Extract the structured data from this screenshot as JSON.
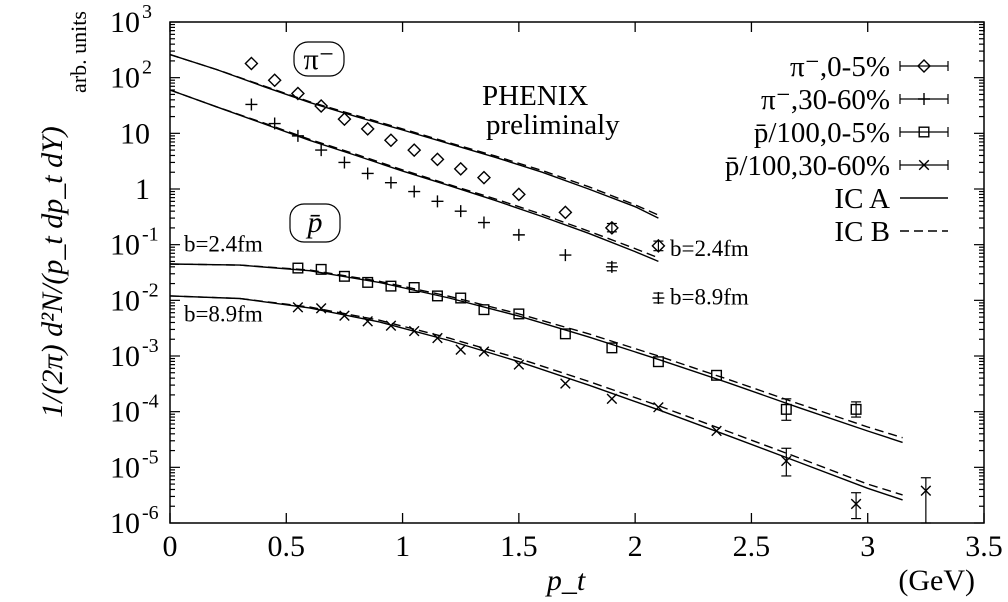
{
  "chart_data": {
    "type": "scatter",
    "title": "",
    "xlabel": "p_t",
    "xunit": "(GeV)",
    "ylabel": "1/(2π) d²N/(p_t dp_t dY)",
    "yunit": "arb. units",
    "xlim": [
      0,
      3.5
    ],
    "ylim": [
      1e-06,
      1000
    ],
    "yscale": "log",
    "grid": false,
    "legend_position": "top-right",
    "x_ticks": [
      "0",
      "0.5",
      "1",
      "1.5",
      "2",
      "2.5",
      "3",
      "3.5"
    ],
    "y_ticks": [
      {
        "value": 1e-06,
        "base": "10",
        "exp": "-6"
      },
      {
        "value": 1e-05,
        "base": "10",
        "exp": "-5"
      },
      {
        "value": 0.0001,
        "base": "10",
        "exp": "-4"
      },
      {
        "value": 0.001,
        "base": "10",
        "exp": "-3"
      },
      {
        "value": 0.01,
        "base": "10",
        "exp": "-2"
      },
      {
        "value": 0.1,
        "base": "10",
        "exp": "-1"
      },
      {
        "value": 1,
        "base": "1",
        "exp": ""
      },
      {
        "value": 10,
        "base": "10",
        "exp": ""
      },
      {
        "value": 100,
        "base": "10",
        "exp": "2"
      },
      {
        "value": 1000,
        "base": "10",
        "exp": "3"
      }
    ],
    "annotations": {
      "experiment": [
        "PHENIX",
        "preliminaly"
      ],
      "pion_box": "π⁻",
      "proton_box": "p̄",
      "b_labels": [
        {
          "text": "b=2.4fm",
          "x": 2.15,
          "y": 0.062
        },
        {
          "text": "b=8.9fm",
          "x": 2.15,
          "y": 0.0085
        },
        {
          "text": "b=2.4fm",
          "x": 0.06,
          "y": 0.075
        },
        {
          "text": "b=8.9fm",
          "x": 0.06,
          "y": 0.0042
        }
      ]
    },
    "series": [
      {
        "name": "π⁻,0-5%",
        "marker": "diamond",
        "points": [
          {
            "x": 0.35,
            "y": 180
          },
          {
            "x": 0.45,
            "y": 90
          },
          {
            "x": 0.55,
            "y": 52
          },
          {
            "x": 0.65,
            "y": 31
          },
          {
            "x": 0.75,
            "y": 18
          },
          {
            "x": 0.85,
            "y": 12
          },
          {
            "x": 0.95,
            "y": 7.5
          },
          {
            "x": 1.05,
            "y": 5.0
          },
          {
            "x": 1.15,
            "y": 3.4
          },
          {
            "x": 1.25,
            "y": 2.3
          },
          {
            "x": 1.35,
            "y": 1.6
          },
          {
            "x": 1.5,
            "y": 0.8
          },
          {
            "x": 1.7,
            "y": 0.38
          },
          {
            "x": 1.9,
            "y": 0.2,
            "err": [
              0.17,
              0.24
            ]
          },
          {
            "x": 2.1,
            "y": 0.095,
            "err": [
              0.078,
              0.116
            ]
          }
        ]
      },
      {
        "name": "π⁻,30-60%",
        "marker": "plus",
        "points": [
          {
            "x": 0.35,
            "y": 33
          },
          {
            "x": 0.45,
            "y": 15
          },
          {
            "x": 0.55,
            "y": 9.0
          },
          {
            "x": 0.65,
            "y": 5.0
          },
          {
            "x": 0.75,
            "y": 3.0
          },
          {
            "x": 0.85,
            "y": 1.9
          },
          {
            "x": 0.95,
            "y": 1.3
          },
          {
            "x": 1.05,
            "y": 0.9
          },
          {
            "x": 1.15,
            "y": 0.6
          },
          {
            "x": 1.25,
            "y": 0.4
          },
          {
            "x": 1.35,
            "y": 0.25
          },
          {
            "x": 1.5,
            "y": 0.15
          },
          {
            "x": 1.7,
            "y": 0.065
          },
          {
            "x": 1.9,
            "y": 0.04,
            "err": [
              0.034,
              0.047
            ]
          },
          {
            "x": 2.1,
            "y": 0.011,
            "err": [
              0.009,
              0.0135
            ]
          }
        ]
      },
      {
        "name": "p̄/100,0-5%",
        "marker": "square",
        "points": [
          {
            "x": 0.55,
            "y": 0.038
          },
          {
            "x": 0.65,
            "y": 0.036
          },
          {
            "x": 0.75,
            "y": 0.027
          },
          {
            "x": 0.85,
            "y": 0.021
          },
          {
            "x": 0.95,
            "y": 0.018
          },
          {
            "x": 1.05,
            "y": 0.017
          },
          {
            "x": 1.15,
            "y": 0.012
          },
          {
            "x": 1.25,
            "y": 0.011
          },
          {
            "x": 1.35,
            "y": 0.0068
          },
          {
            "x": 1.5,
            "y": 0.0057
          },
          {
            "x": 1.7,
            "y": 0.0025
          },
          {
            "x": 1.9,
            "y": 0.0014
          },
          {
            "x": 2.1,
            "y": 0.00079
          },
          {
            "x": 2.35,
            "y": 0.00045
          },
          {
            "x": 2.65,
            "y": 0.00011,
            "err": [
              7e-05,
              0.00017
            ]
          },
          {
            "x": 2.95,
            "y": 0.00011,
            "err": [
              8e-05,
              0.00015
            ]
          }
        ]
      },
      {
        "name": "p̄/100,30-60%",
        "marker": "cross",
        "points": [
          {
            "x": 0.55,
            "y": 0.0075
          },
          {
            "x": 0.65,
            "y": 0.0072
          },
          {
            "x": 0.75,
            "y": 0.0053
          },
          {
            "x": 0.85,
            "y": 0.0042
          },
          {
            "x": 0.95,
            "y": 0.0035
          },
          {
            "x": 1.05,
            "y": 0.0028
          },
          {
            "x": 1.15,
            "y": 0.0021
          },
          {
            "x": 1.25,
            "y": 0.0013
          },
          {
            "x": 1.35,
            "y": 0.0012
          },
          {
            "x": 1.5,
            "y": 0.0007
          },
          {
            "x": 1.7,
            "y": 0.00032
          },
          {
            "x": 1.9,
            "y": 0.00017
          },
          {
            "x": 2.1,
            "y": 0.00012
          },
          {
            "x": 2.35,
            "y": 4.5e-05
          },
          {
            "x": 2.65,
            "y": 1.3e-05,
            "err": [
              7e-06,
              2.2e-05
            ]
          },
          {
            "x": 2.95,
            "y": 2.2e-06,
            "err": [
              1.2e-06,
              3.5e-06
            ]
          },
          {
            "x": 3.25,
            "y": 3.8e-06,
            "err": [
              1e-06,
              6.5e-06
            ]
          }
        ]
      }
    ],
    "curves": [
      {
        "name": "IC A",
        "style": "solid",
        "group": "π⁻,0-5%",
        "x": [
          0,
          0.2,
          0.4,
          0.6,
          0.8,
          1.0,
          1.2,
          1.4,
          1.6,
          1.8,
          2.0,
          2.1
        ],
        "y": [
          260,
          140,
          70,
          36,
          20,
          11.5,
          6.5,
          3.7,
          2.0,
          1.0,
          0.48,
          0.3
        ]
      },
      {
        "name": "IC B",
        "style": "dashed",
        "group": "π⁻,0-5%",
        "x": [
          0,
          0.2,
          0.4,
          0.6,
          0.8,
          1.0,
          1.2,
          1.4,
          1.6,
          1.8,
          2.0,
          2.1
        ],
        "y": [
          260,
          140,
          72,
          37,
          21,
          12,
          6.8,
          3.9,
          2.15,
          1.1,
          0.52,
          0.34
        ]
      },
      {
        "name": "IC A",
        "style": "solid",
        "group": "π⁻,30-60%",
        "x": [
          0,
          0.2,
          0.4,
          0.6,
          0.8,
          1.0,
          1.2,
          1.4,
          1.6,
          1.8,
          2.0,
          2.1
        ],
        "y": [
          60,
          30,
          15,
          7.5,
          4.0,
          2.1,
          1.15,
          0.62,
          0.32,
          0.16,
          0.075,
          0.05
        ]
      },
      {
        "name": "IC B",
        "style": "dashed",
        "group": "π⁻,30-60%",
        "x": [
          0,
          0.2,
          0.4,
          0.6,
          0.8,
          1.0,
          1.2,
          1.4,
          1.6,
          1.8,
          2.0,
          2.1
        ],
        "y": [
          60,
          30,
          15.5,
          7.8,
          4.2,
          2.2,
          1.2,
          0.66,
          0.35,
          0.175,
          0.085,
          0.058
        ]
      },
      {
        "name": "IC A",
        "style": "solid",
        "group": "p̄/100,0-5%",
        "x": [
          0,
          0.3,
          0.6,
          0.9,
          1.2,
          1.5,
          1.8,
          2.1,
          2.4,
          2.7,
          3.0,
          3.15
        ],
        "y": [
          0.045,
          0.043,
          0.034,
          0.021,
          0.011,
          0.0052,
          0.0022,
          0.00087,
          0.00033,
          0.00012,
          4.5e-05,
          2.8e-05
        ]
      },
      {
        "name": "IC B",
        "style": "dashed",
        "group": "p̄/100,0-5%",
        "x": [
          0,
          0.3,
          0.6,
          0.9,
          1.2,
          1.5,
          1.8,
          2.1,
          2.4,
          2.7,
          3.0,
          3.15
        ],
        "y": [
          0.045,
          0.043,
          0.035,
          0.022,
          0.0118,
          0.0057,
          0.0025,
          0.001,
          0.00038,
          0.00014,
          5.3e-05,
          3.4e-05
        ]
      },
      {
        "name": "IC A",
        "style": "solid",
        "group": "p̄/100,30-60%",
        "x": [
          0,
          0.3,
          0.6,
          0.9,
          1.2,
          1.5,
          1.8,
          2.1,
          2.4,
          2.7,
          3.0,
          3.15
        ],
        "y": [
          0.012,
          0.0108,
          0.0073,
          0.0041,
          0.0019,
          0.00079,
          0.0003,
          0.000108,
          3.7e-05,
          1.25e-05,
          4.2e-06,
          2.6e-06
        ]
      },
      {
        "name": "IC B",
        "style": "dashed",
        "group": "p̄/100,30-60%",
        "x": [
          0,
          0.3,
          0.6,
          0.9,
          1.2,
          1.5,
          1.8,
          2.1,
          2.4,
          2.7,
          3.0,
          3.15
        ],
        "y": [
          0.012,
          0.0108,
          0.0076,
          0.0044,
          0.0021,
          0.0009,
          0.00035,
          0.000128,
          4.4e-05,
          1.5e-05,
          5e-06,
          3.2e-06
        ]
      }
    ],
    "legend": [
      {
        "label": "π⁻,0-5%",
        "marker": "diamond"
      },
      {
        "label": "π⁻,30-60%",
        "marker": "plus"
      },
      {
        "label": "p̄/100,0-5%",
        "marker": "square"
      },
      {
        "label": "p̄/100,30-60%",
        "marker": "cross"
      },
      {
        "label": "IC A",
        "line": "solid"
      },
      {
        "label": "IC B",
        "line": "dashed"
      }
    ]
  }
}
